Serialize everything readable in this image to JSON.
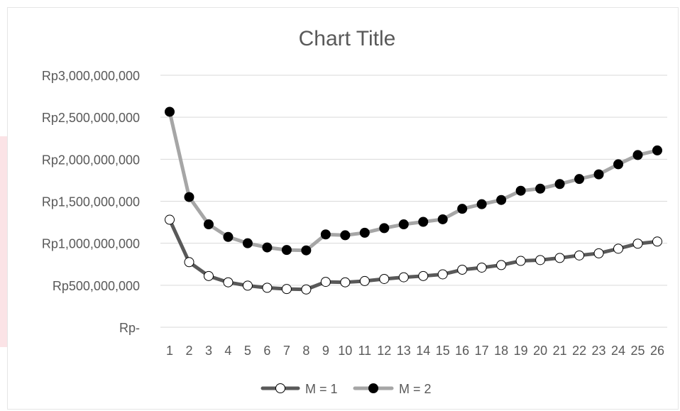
{
  "chart_data": {
    "type": "line",
    "title": "Chart Title",
    "x": [
      1,
      2,
      3,
      4,
      5,
      6,
      7,
      8,
      9,
      10,
      11,
      12,
      13,
      14,
      15,
      16,
      17,
      18,
      19,
      20,
      21,
      22,
      23,
      24,
      25,
      26
    ],
    "y_ticks": [
      "Rp-",
      "Rp500,000,000",
      "Rp1,000,000,000",
      "Rp1,500,000,000",
      "Rp2,000,000,000",
      "Rp2,500,000,000",
      "Rp3,000,000,000"
    ],
    "ylim": [
      0,
      3000000000
    ],
    "grid": true,
    "legend": "bottom",
    "series": [
      {
        "name": "M = 1",
        "line_color": "#595959",
        "marker_fill": "#ffffff",
        "values": [
          1280000000,
          775000000,
          610000000,
          535000000,
          495000000,
          470000000,
          455000000,
          450000000,
          540000000,
          535000000,
          550000000,
          575000000,
          595000000,
          610000000,
          630000000,
          685000000,
          710000000,
          740000000,
          790000000,
          800000000,
          825000000,
          855000000,
          880000000,
          935000000,
          995000000,
          1020000000
        ]
      },
      {
        "name": "M = 2",
        "line_color": "#a6a6a6",
        "marker_fill": "#000000",
        "values": [
          2565000000,
          1550000000,
          1225000000,
          1075000000,
          1000000000,
          950000000,
          920000000,
          915000000,
          1105000000,
          1095000000,
          1125000000,
          1180000000,
          1225000000,
          1255000000,
          1285000000,
          1410000000,
          1465000000,
          1515000000,
          1625000000,
          1650000000,
          1705000000,
          1765000000,
          1820000000,
          1940000000,
          2050000000,
          2105000000
        ]
      }
    ]
  }
}
